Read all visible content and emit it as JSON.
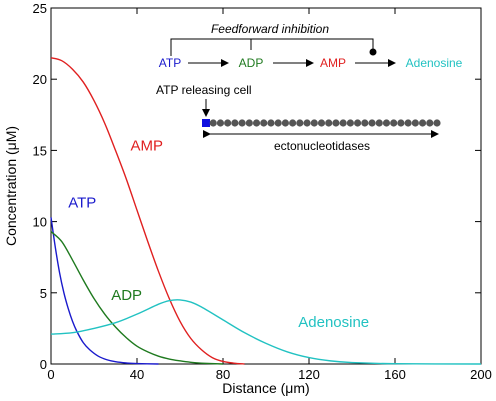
{
  "chart_data": {
    "type": "line",
    "xlabel": "Distance (μm)",
    "ylabel": "Concentration (μM)",
    "xlim": [
      0,
      200
    ],
    "ylim": [
      0,
      25
    ],
    "x_ticks": [
      "0",
      "40",
      "80",
      "120",
      "160",
      "200"
    ],
    "y_ticks": [
      "0",
      "5",
      "10",
      "15",
      "20",
      "25"
    ],
    "grid": false,
    "colors": {
      "ATP": "#1a1acc",
      "ADP": "#1f7a1f",
      "AMP": "#e02020",
      "Adenosine": "#22c2c2"
    },
    "series": [
      {
        "name": "ATP",
        "x": [
          0,
          2,
          4,
          6,
          8,
          10,
          12,
          15,
          18,
          22,
          26,
          30,
          35,
          40,
          50
        ],
        "y": [
          10.3,
          8.2,
          6.4,
          5.0,
          3.9,
          3.0,
          2.3,
          1.5,
          1.0,
          0.55,
          0.3,
          0.16,
          0.07,
          0.03,
          0.0
        ]
      },
      {
        "name": "ADP",
        "x": [
          0,
          5,
          10,
          15,
          20,
          25,
          30,
          35,
          40,
          45,
          50,
          55,
          60,
          65,
          70,
          80
        ],
        "y": [
          9.3,
          8.6,
          7.3,
          5.9,
          4.6,
          3.5,
          2.6,
          1.85,
          1.25,
          0.85,
          0.55,
          0.35,
          0.22,
          0.12,
          0.06,
          0.0
        ]
      },
      {
        "name": "AMP",
        "x": [
          0,
          5,
          10,
          15,
          20,
          25,
          30,
          35,
          40,
          45,
          50,
          55,
          60,
          65,
          70,
          75,
          80,
          85,
          90
        ],
        "y": [
          21.5,
          21.3,
          20.7,
          19.8,
          18.5,
          16.9,
          15.0,
          13.0,
          10.8,
          8.6,
          6.5,
          4.6,
          3.0,
          1.8,
          1.0,
          0.45,
          0.18,
          0.06,
          0.0
        ]
      },
      {
        "name": "Adenosine",
        "x": [
          0,
          10,
          20,
          30,
          40,
          50,
          55,
          60,
          65,
          70,
          80,
          90,
          100,
          110,
          120,
          130,
          140,
          160,
          200
        ],
        "y": [
          2.1,
          2.2,
          2.5,
          2.9,
          3.5,
          4.2,
          4.45,
          4.5,
          4.35,
          4.0,
          3.1,
          2.2,
          1.45,
          0.85,
          0.45,
          0.22,
          0.1,
          0.02,
          0.0
        ]
      }
    ],
    "series_labels": [
      {
        "text": "ATP",
        "series": "ATP",
        "at": [
          8,
          11.0
        ]
      },
      {
        "text": "ADP",
        "series": "ADP",
        "at": [
          28,
          4.5
        ]
      },
      {
        "text": "AMP",
        "series": "AMP",
        "at": [
          37,
          15.0
        ]
      },
      {
        "text": "Adenosine",
        "series": "Adenosine",
        "at": [
          115,
          2.6
        ]
      }
    ]
  },
  "inset": {
    "title": "Feedforward inhibition",
    "pathway": [
      "ATP",
      "ADP",
      "AMP",
      "Adenosine"
    ],
    "releasing_cell_label": "ATP releasing cell",
    "span_label": "ectonucleotidases",
    "cell_count": 33,
    "colors": {
      "release_cell": "#1010e0",
      "cells": "#555555"
    }
  }
}
